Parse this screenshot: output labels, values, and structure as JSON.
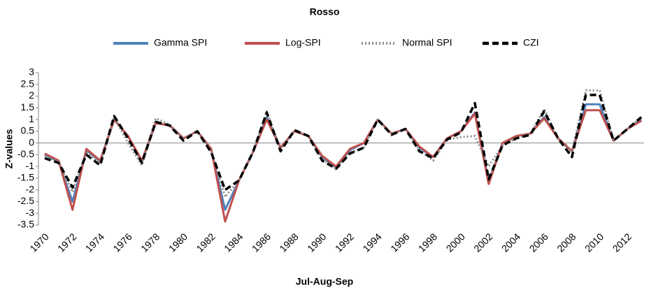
{
  "chart_data": {
    "type": "line",
    "title": "Rosso",
    "x_label": "Jul-Aug-Sep",
    "y_label": "Z-values",
    "categories": [
      "1970",
      null,
      "1972",
      null,
      "1974",
      null,
      "1976",
      null,
      "1978",
      null,
      "1980",
      null,
      "1982",
      null,
      "1984",
      null,
      "1986",
      null,
      "1988",
      null,
      "1990",
      null,
      "1992",
      null,
      "1994",
      null,
      "1996",
      null,
      "1998",
      null,
      "2000",
      null,
      "2002",
      null,
      "2004",
      null,
      "2006",
      null,
      "2008",
      null,
      "2010",
      null,
      "2012",
      null
    ],
    "series": [
      {
        "name": "Gamma SPI",
        "color": "#4f81bd",
        "style": "solid",
        "values": [
          -0.5,
          -0.8,
          -2.5,
          -0.3,
          -0.8,
          1.0,
          0.3,
          -0.8,
          0.85,
          0.75,
          0.2,
          0.5,
          -0.3,
          -2.85,
          -1.6,
          -0.4,
          1.1,
          -0.2,
          0.5,
          0.3,
          -0.6,
          -1.05,
          -0.3,
          0.0,
          1.0,
          0.4,
          0.6,
          -0.2,
          -0.6,
          0.2,
          0.5,
          1.3,
          -1.65,
          0.0,
          0.3,
          0.4,
          1.1,
          0.2,
          -0.35,
          1.65,
          1.65,
          0.1,
          0.6,
          1.0
        ]
      },
      {
        "name": "Log-SPI",
        "color": "#c0504d",
        "style": "solid",
        "values": [
          -0.45,
          -0.75,
          -2.85,
          -0.25,
          -0.75,
          1.0,
          0.3,
          -0.75,
          0.85,
          0.75,
          0.2,
          0.5,
          -0.25,
          -3.35,
          -1.6,
          -0.4,
          1.0,
          -0.2,
          0.5,
          0.3,
          -0.55,
          -1.0,
          -0.25,
          0.0,
          1.0,
          0.4,
          0.6,
          -0.15,
          -0.6,
          0.2,
          0.5,
          1.25,
          -1.75,
          0.0,
          0.3,
          0.4,
          1.05,
          0.2,
          -0.35,
          1.4,
          1.4,
          0.1,
          0.6,
          0.95
        ]
      },
      {
        "name": "Normal SPI",
        "color": "#8c8c8c",
        "style": "dotted",
        "values": [
          -0.55,
          -0.8,
          -2.1,
          -0.4,
          -0.85,
          1.1,
          0.0,
          -0.95,
          1.05,
          0.8,
          0.2,
          0.5,
          -0.3,
          -2.3,
          -1.6,
          -0.4,
          1.35,
          -0.3,
          0.55,
          0.3,
          -0.7,
          -1.1,
          -0.4,
          -0.2,
          1.0,
          0.4,
          0.6,
          -0.3,
          -0.75,
          0.15,
          0.25,
          0.3,
          -1.0,
          -0.1,
          0.2,
          0.4,
          1.45,
          0.15,
          -0.4,
          2.25,
          2.25,
          0.1,
          0.6,
          1.1
        ]
      },
      {
        "name": "CZI",
        "color": "#000000",
        "style": "dashed",
        "values": [
          -0.65,
          -0.85,
          -1.9,
          -0.5,
          -0.95,
          1.15,
          0.2,
          -0.85,
          0.9,
          0.75,
          0.1,
          0.5,
          -0.4,
          -2.0,
          -1.6,
          -0.4,
          1.3,
          -0.35,
          0.55,
          0.3,
          -0.75,
          -1.1,
          -0.45,
          -0.2,
          1.0,
          0.35,
          0.6,
          -0.35,
          -0.65,
          0.15,
          0.45,
          1.7,
          -1.55,
          -0.1,
          0.2,
          0.35,
          1.35,
          0.2,
          -0.6,
          2.05,
          2.05,
          0.1,
          0.6,
          1.1
        ]
      }
    ],
    "ylim": [
      -3.5,
      3
    ],
    "yticks": [
      3,
      2.5,
      2,
      1.5,
      1,
      0.5,
      0,
      -0.5,
      -1,
      -1.5,
      -2,
      -2.5,
      -3,
      -3.5
    ],
    "legend": "top"
  }
}
